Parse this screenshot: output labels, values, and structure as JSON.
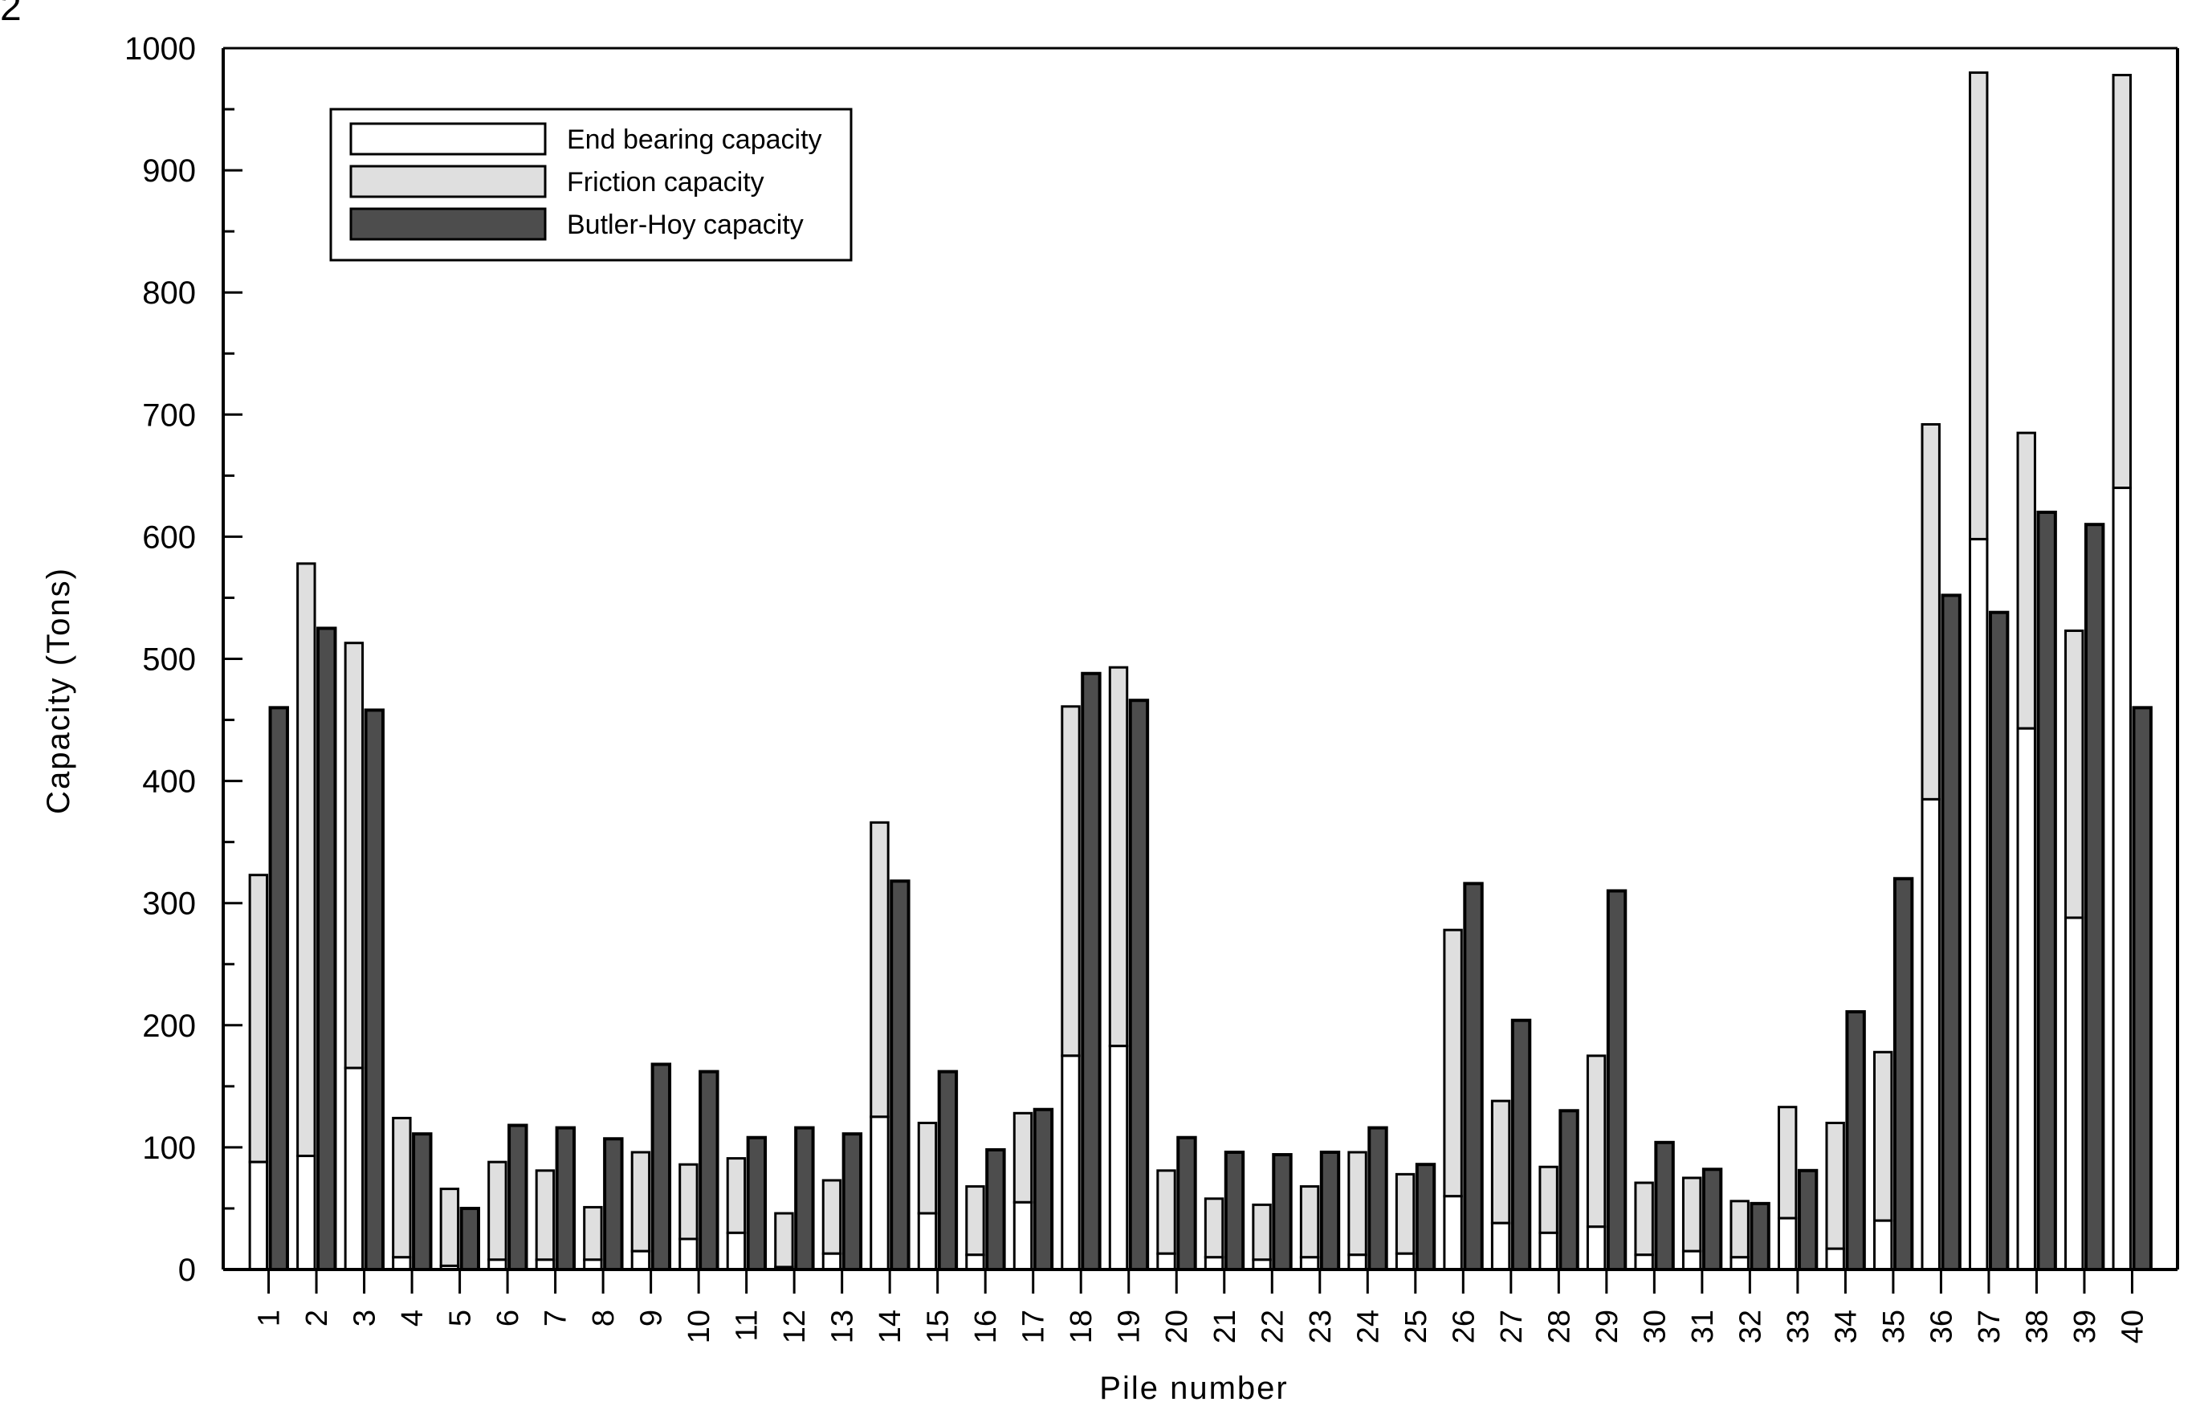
{
  "corner_mark": "2",
  "chart_data": {
    "type": "bar",
    "title": "",
    "xlabel": "Pile number",
    "ylabel": "Capacity (Tons)",
    "ylim": [
      0,
      1000
    ],
    "yticks": [
      0,
      100,
      200,
      300,
      400,
      500,
      600,
      700,
      800,
      900,
      1000
    ],
    "grid": false,
    "legend_position": "upper-left",
    "categories": [
      "1",
      "2",
      "3",
      "4",
      "5",
      "6",
      "7",
      "8",
      "9",
      "10",
      "11",
      "12",
      "13",
      "14",
      "15",
      "16",
      "17",
      "18",
      "19",
      "20",
      "21",
      "22",
      "23",
      "24",
      "25",
      "26",
      "27",
      "28",
      "29",
      "30",
      "31",
      "32",
      "33",
      "34",
      "35",
      "36",
      "37",
      "38",
      "39",
      "40"
    ],
    "series": [
      {
        "name": "End bearing capacity",
        "stack": "A",
        "color": "#ffffff",
        "values": [
          88,
          93,
          165,
          10,
          3,
          8,
          8,
          8,
          15,
          25,
          30,
          2,
          13,
          125,
          46,
          12,
          55,
          175,
          183,
          13,
          10,
          8,
          10,
          12,
          13,
          60,
          38,
          30,
          35,
          12,
          15,
          10,
          42,
          17,
          40,
          385,
          598,
          443,
          288,
          640
        ]
      },
      {
        "name": "Friction capacity",
        "stack": "A",
        "color": "#dfdfdf",
        "values": [
          235,
          485,
          348,
          114,
          63,
          80,
          73,
          43,
          81,
          61,
          61,
          44,
          60,
          241,
          74,
          56,
          73,
          286,
          310,
          68,
          48,
          45,
          58,
          84,
          65,
          218,
          100,
          54,
          140,
          59,
          60,
          46,
          91,
          103,
          138,
          307,
          382,
          242,
          235,
          338
        ]
      },
      {
        "name": "Butler-Hoy capacity",
        "stack": "B",
        "color": "#4d4d4d",
        "values": [
          460,
          525,
          458,
          111,
          50,
          118,
          116,
          107,
          168,
          162,
          108,
          116,
          111,
          318,
          162,
          98,
          131,
          488,
          466,
          108,
          96,
          94,
          96,
          116,
          86,
          316,
          204,
          130,
          310,
          104,
          82,
          54,
          81,
          211,
          320,
          552,
          538,
          620,
          610,
          460
        ]
      }
    ],
    "stack_totals_A": [
      323,
      578,
      513,
      124,
      66,
      88,
      81,
      51,
      96,
      86,
      91,
      46,
      73,
      366,
      120,
      68,
      128,
      461,
      493,
      81,
      58,
      53,
      68,
      96,
      78,
      278,
      138,
      84,
      175,
      71,
      75,
      56,
      133,
      120,
      178,
      692,
      980,
      685,
      523,
      978
    ]
  }
}
